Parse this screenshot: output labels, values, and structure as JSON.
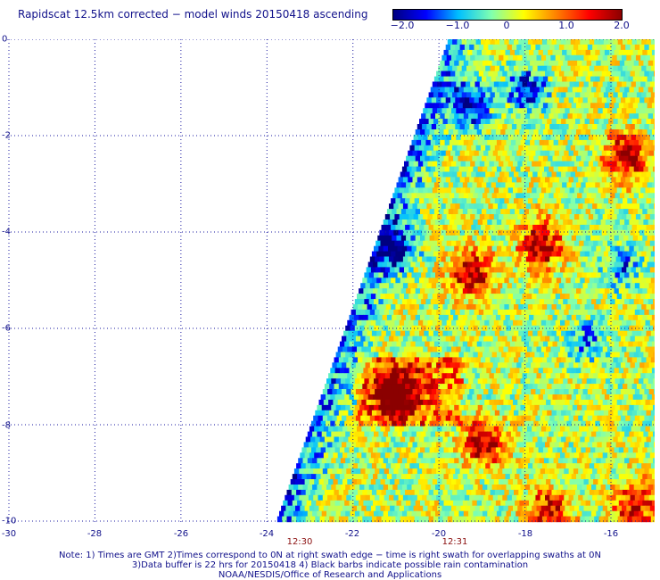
{
  "title": "Rapidscat 12.5km corrected − model winds 20150418 ascending",
  "colorbar": {
    "ticks": [
      "−2.0",
      "−1.0",
      "0",
      "1.0",
      "2.0"
    ],
    "tick_values": [
      -2.0,
      -1.0,
      0,
      1.0,
      2.0
    ],
    "range": [
      -2.0,
      2.0
    ],
    "colors": [
      "#000080",
      "#0000ff",
      "#00c0ff",
      "#7fffb0",
      "#ffff00",
      "#ff8000",
      "#ff0000",
      "#8b0000"
    ]
  },
  "chart_data": {
    "type": "heatmap",
    "title": "Rapidscat 12.5km corrected − model winds 20150418 ascending",
    "xlim": [
      -30,
      -15
    ],
    "ylim": [
      -10,
      0
    ],
    "x_tick_labels": [
      "-30",
      "-28",
      "-26",
      "-24",
      "-22",
      "-20",
      "-18",
      "-16"
    ],
    "x_tick_values": [
      -30,
      -28,
      -26,
      -24,
      -22,
      -20,
      -18,
      -16
    ],
    "y_tick_labels": [
      "0",
      "-2",
      "-4",
      "-6",
      "-8",
      "-10"
    ],
    "y_tick_values": [
      0,
      -2,
      -4,
      -6,
      -8,
      -10
    ],
    "grid": true,
    "swath_edge": [
      [
        -19.8,
        0
      ],
      [
        -23.8,
        -10
      ]
    ],
    "times": [
      {
        "label": "12:30",
        "lon": -23.2
      },
      {
        "label": "12:31",
        "lon": -19.6
      }
    ],
    "hotspots": [
      {
        "lon": -21.0,
        "lat": -7.3,
        "value": 2.0
      },
      {
        "lon": -19.0,
        "lat": -8.3,
        "value": 2.0
      },
      {
        "lon": -17.7,
        "lat": -4.2,
        "value": 2.0
      },
      {
        "lon": -15.7,
        "lat": -2.4,
        "value": 2.0
      },
      {
        "lon": -17.5,
        "lat": -9.8,
        "value": 1.9
      },
      {
        "lon": -15.5,
        "lat": -9.6,
        "value": 1.8
      },
      {
        "lon": -19.3,
        "lat": -4.8,
        "value": 2.0
      }
    ],
    "coldspots": [
      {
        "lon": -19.3,
        "lat": -1.3,
        "value": -2.0
      },
      {
        "lon": -18.0,
        "lat": -1.0,
        "value": -1.8
      },
      {
        "lon": -21.0,
        "lat": -4.3,
        "value": -1.6
      },
      {
        "lon": -15.8,
        "lat": -4.7,
        "value": -1.2
      },
      {
        "lon": -16.6,
        "lat": -6.2,
        "value": -1.2
      }
    ]
  },
  "notes": {
    "line1": "Note: 1) Times are GMT 2)Times correspond to 0N at right swath edge − time is right swath for overlapping swaths at 0N",
    "line2": "3)Data buffer is 22 hrs for 20150418 4) Black barbs indicate possible rain contamination",
    "line3": "NOAA/NESDIS/Office of Research and Applications"
  }
}
